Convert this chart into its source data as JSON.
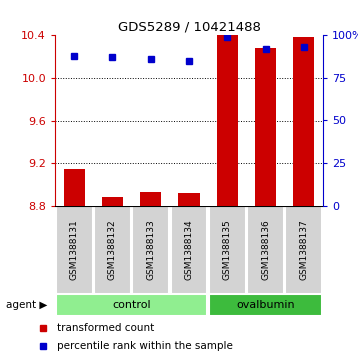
{
  "title": "GDS5289 / 10421488",
  "samples": [
    "GSM1388131",
    "GSM1388132",
    "GSM1388133",
    "GSM1388134",
    "GSM1388135",
    "GSM1388136",
    "GSM1388137"
  ],
  "transformed_count": [
    9.15,
    8.88,
    8.93,
    8.92,
    10.4,
    10.28,
    10.38
  ],
  "percentile_rank": [
    88,
    87,
    86,
    85,
    99,
    92,
    93
  ],
  "bar_color": "#cc0000",
  "dot_color": "#0000cc",
  "ylim_left": [
    8.8,
    10.4
  ],
  "ylim_right": [
    0,
    100
  ],
  "yticks_left": [
    8.8,
    9.2,
    9.6,
    10.0,
    10.4
  ],
  "yticks_right": [
    0,
    25,
    50,
    75,
    100
  ],
  "ytick_labels_right": [
    "0",
    "25",
    "50",
    "75",
    "100%"
  ],
  "control_indices": [
    0,
    1,
    2,
    3
  ],
  "ovalbumin_indices": [
    4,
    5,
    6
  ],
  "control_color": "#90ee90",
  "ovalbumin_color": "#3dbb3d",
  "label_bg_color": "#d3d3d3",
  "agent_label": "agent",
  "legend_bar_label": "transformed count",
  "legend_dot_label": "percentile rank within the sample",
  "bar_base": 8.8,
  "bar_width": 0.55
}
